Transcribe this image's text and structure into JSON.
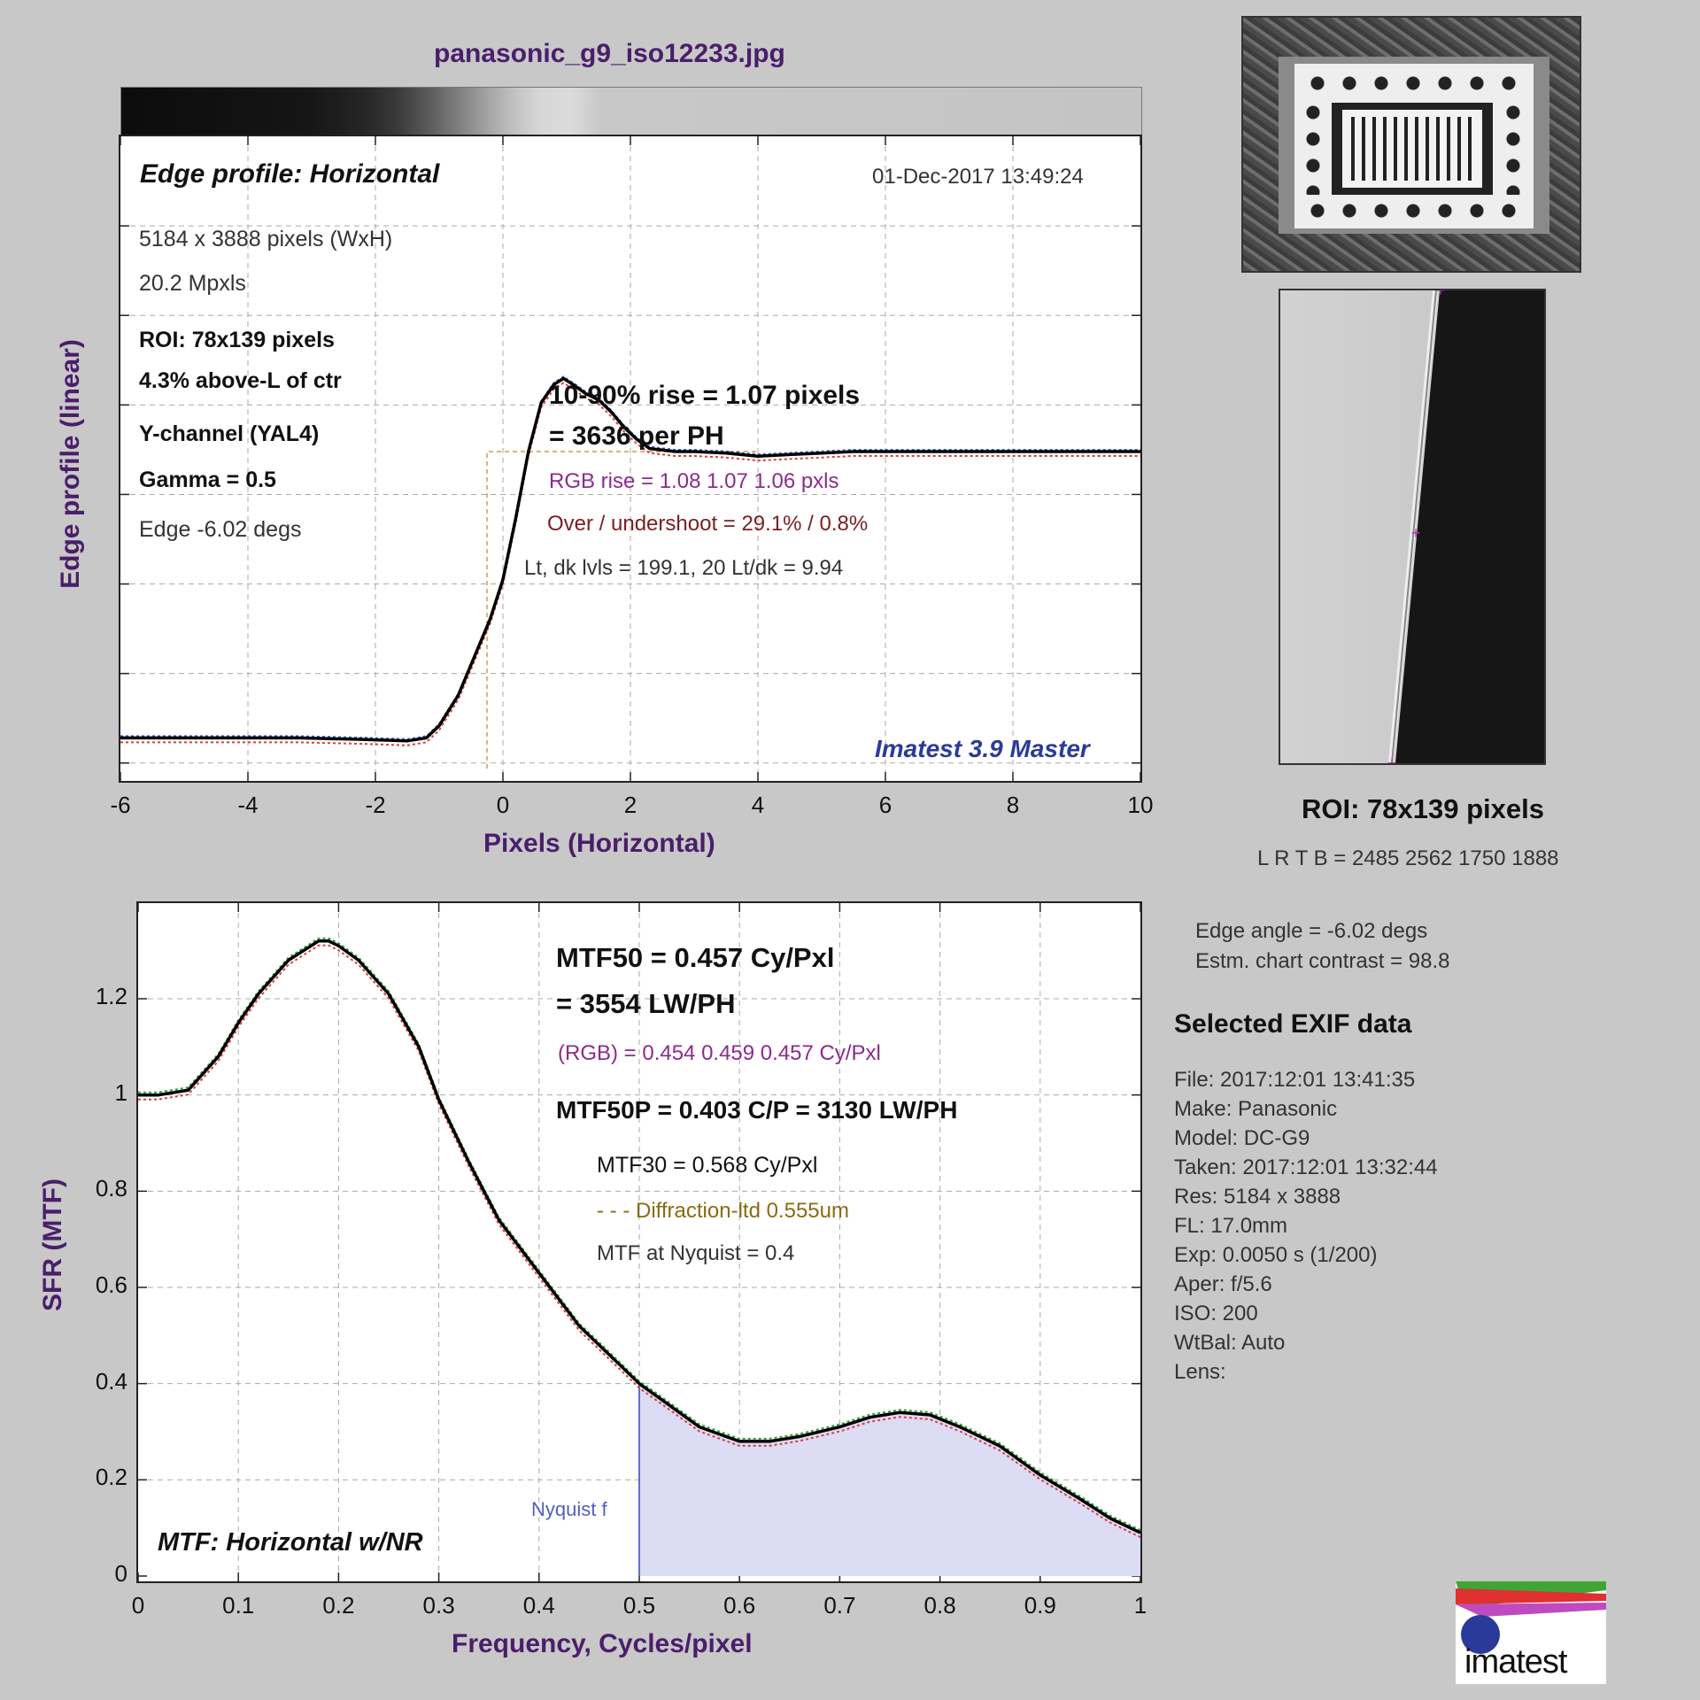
{
  "file_title": "panasonic_g9_iso12233.jpg",
  "edge": {
    "title": "Edge profile: Horizontal",
    "timestamp": "01-Dec-2017 13:49:24",
    "size_text": "5184 x 3888 pixels (WxH)",
    "mpxls": "20.2 Mpxls",
    "roi": "ROI:  78x139 pixels",
    "roi_pos": "4.3% above-L of ctr",
    "channel": "Y-channel  (YAL4)",
    "gamma": "Gamma = 0.5",
    "edge_angle": "Edge -6.02 degs",
    "rise": "10-90% rise = 1.07 pixels",
    "per_ph": "= 3636 per PH",
    "rgb_rise": "RGB rise = 1.08  1.07  1.06 pxls",
    "overshoot": "Over / undershoot = 29.1% / 0.8%",
    "levels": "Lt, dk lvls = 199.1, 20   Lt/dk = 9.94",
    "watermark": "Imatest 3.9 Master",
    "ylabel": "Edge profile (linear)",
    "xlabel": "Pixels (Horizontal)"
  },
  "mtf": {
    "mtf50": "MTF50 = 0.457 Cy/Pxl",
    "lwph": "= 3554 LW/PH",
    "rgb": "(RGB) = 0.454  0.459  0.457 Cy/Pxl",
    "mtf50p": "MTF50P = 0.403 C/P = 3130 LW/PH",
    "mtf30": "MTF30 = 0.568 Cy/Pxl",
    "diffraction": "- - - Diffraction-ltd  0.555um",
    "nyq_value": "MTF at Nyquist = 0.4",
    "nyquist_label": "Nyquist f",
    "subtitle": "MTF: Horizontal w/NR",
    "ylabel": "SFR (MTF)",
    "xlabel": "Frequency, Cycles/pixel"
  },
  "right": {
    "roi_label": "ROI:  78x139 pixels",
    "lrtb": "L R  T B = 2485 2562  1750 1888",
    "edge_angle": "Edge angle = -6.02 degs",
    "contrast": "Estm. chart contrast = 98.8",
    "exif_title": "Selected EXIF data",
    "exif": [
      "File:  2017:12:01 13:41:35",
      "Make:  Panasonic",
      "Model:  DC-G9",
      "Taken: 2017:12:01 13:32:44",
      "Res:    5184 x 3888",
      "FL:      17.0mm",
      "Exp:    0.0050 s  (1/200)",
      "Aper:   f/5.6",
      "ISO:    200",
      "WtBal: Auto",
      "Lens:"
    ],
    "logo_text": "imatest"
  },
  "chart_data": [
    {
      "type": "line",
      "title": "Edge profile: Horizontal",
      "xlabel": "Pixels (Horizontal)",
      "ylabel": "Edge profile (linear)",
      "xlim": [
        -6,
        10
      ],
      "xticks": [
        -6,
        -4,
        -2,
        0,
        2,
        4,
        6,
        8,
        10
      ],
      "grid": true,
      "series": [
        {
          "color": "#000000",
          "x": [
            -6,
            -5,
            -4,
            -3.2,
            -2.2,
            -1.5,
            -1.2,
            -1.0,
            -0.7,
            -0.4,
            -0.2,
            0,
            0.2,
            0.4,
            0.6,
            0.8,
            0.95,
            1.1,
            1.3,
            1.5,
            1.7,
            1.9,
            2.1,
            2.3,
            2.5,
            2.7,
            3.0,
            3.5,
            4.0,
            4.5,
            5.0,
            5.5,
            6.0,
            7.0,
            8.0,
            9.0,
            10.0
          ],
          "y": [
            0.06,
            0.06,
            0.06,
            0.06,
            0.055,
            0.05,
            0.06,
            0.1,
            0.2,
            0.35,
            0.45,
            0.58,
            0.78,
            1.0,
            1.16,
            1.22,
            1.24,
            1.22,
            1.19,
            1.17,
            1.13,
            1.08,
            1.04,
            1.01,
            1.005,
            1.0,
            1.0,
            0.995,
            0.985,
            0.99,
            0.995,
            1.0,
            1.0,
            1.0,
            1.0,
            1.0,
            1.0
          ]
        }
      ]
    },
    {
      "type": "line",
      "title": "MTF: Horizontal w/NR",
      "xlabel": "Frequency, Cycles/pixel",
      "ylabel": "SFR (MTF)",
      "xlim": [
        0,
        1
      ],
      "ylim": [
        0,
        1.3
      ],
      "xticks": [
        0,
        0.1,
        0.2,
        0.3,
        0.4,
        0.5,
        0.6,
        0.7,
        0.8,
        0.9,
        1
      ],
      "yticks": [
        0,
        0.2,
        0.4,
        0.6,
        0.8,
        1,
        1.2
      ],
      "grid": true,
      "nyquist": 0.5,
      "series": [
        {
          "color": "#000000",
          "x": [
            0,
            0.02,
            0.05,
            0.08,
            0.1,
            0.12,
            0.15,
            0.18,
            0.19,
            0.2,
            0.22,
            0.25,
            0.28,
            0.3,
            0.33,
            0.36,
            0.4,
            0.44,
            0.48,
            0.5,
            0.53,
            0.56,
            0.6,
            0.63,
            0.66,
            0.7,
            0.73,
            0.76,
            0.79,
            0.82,
            0.86,
            0.9,
            0.94,
            0.97,
            1.0
          ],
          "y": [
            1.0,
            1.0,
            1.01,
            1.08,
            1.15,
            1.21,
            1.28,
            1.32,
            1.32,
            1.31,
            1.28,
            1.21,
            1.1,
            0.99,
            0.86,
            0.74,
            0.63,
            0.52,
            0.44,
            0.4,
            0.355,
            0.31,
            0.28,
            0.28,
            0.29,
            0.31,
            0.33,
            0.34,
            0.335,
            0.31,
            0.27,
            0.21,
            0.16,
            0.12,
            0.09
          ]
        }
      ]
    }
  ]
}
